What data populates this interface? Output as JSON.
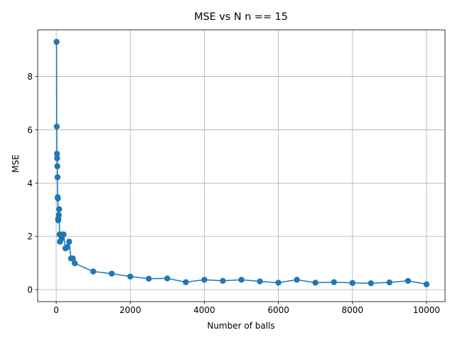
{
  "chart_data": {
    "type": "line",
    "title": "MSE vs N n == 15",
    "xlabel": "Number of balls",
    "ylabel": "MSE",
    "xlim": [
      -500,
      10500
    ],
    "ylim": [
      -0.45,
      9.75
    ],
    "xticks": [
      0,
      2000,
      4000,
      6000,
      8000,
      10000
    ],
    "yticks": [
      0,
      2,
      4,
      6,
      8
    ],
    "grid": true,
    "color": "#1f77b4",
    "marker": "circle",
    "series": [
      {
        "x": [
          10,
          15,
          20,
          25,
          30,
          35,
          40,
          45,
          50,
          55,
          60,
          70,
          80,
          90,
          100,
          120,
          150,
          200,
          250,
          300,
          350,
          400,
          450,
          500,
          1000,
          1500,
          2000,
          2500,
          3000,
          3500,
          4000,
          4500,
          5000,
          5500,
          6000,
          6500,
          7000,
          7500,
          8000,
          8500,
          9000,
          9500,
          10000
        ],
        "y": [
          9.3,
          6.12,
          5.1,
          4.93,
          4.63,
          4.22,
          3.47,
          3.42,
          2.65,
          2.6,
          2.65,
          2.8,
          3.02,
          2.07,
          1.8,
          2.07,
          1.92,
          2.07,
          1.55,
          1.6,
          1.8,
          1.17,
          1.17,
          0.99,
          0.68,
          0.6,
          0.49,
          0.41,
          0.42,
          0.28,
          0.37,
          0.33,
          0.37,
          0.31,
          0.26,
          0.37,
          0.26,
          0.28,
          0.25,
          0.24,
          0.27,
          0.33,
          0.2
        ]
      }
    ]
  }
}
